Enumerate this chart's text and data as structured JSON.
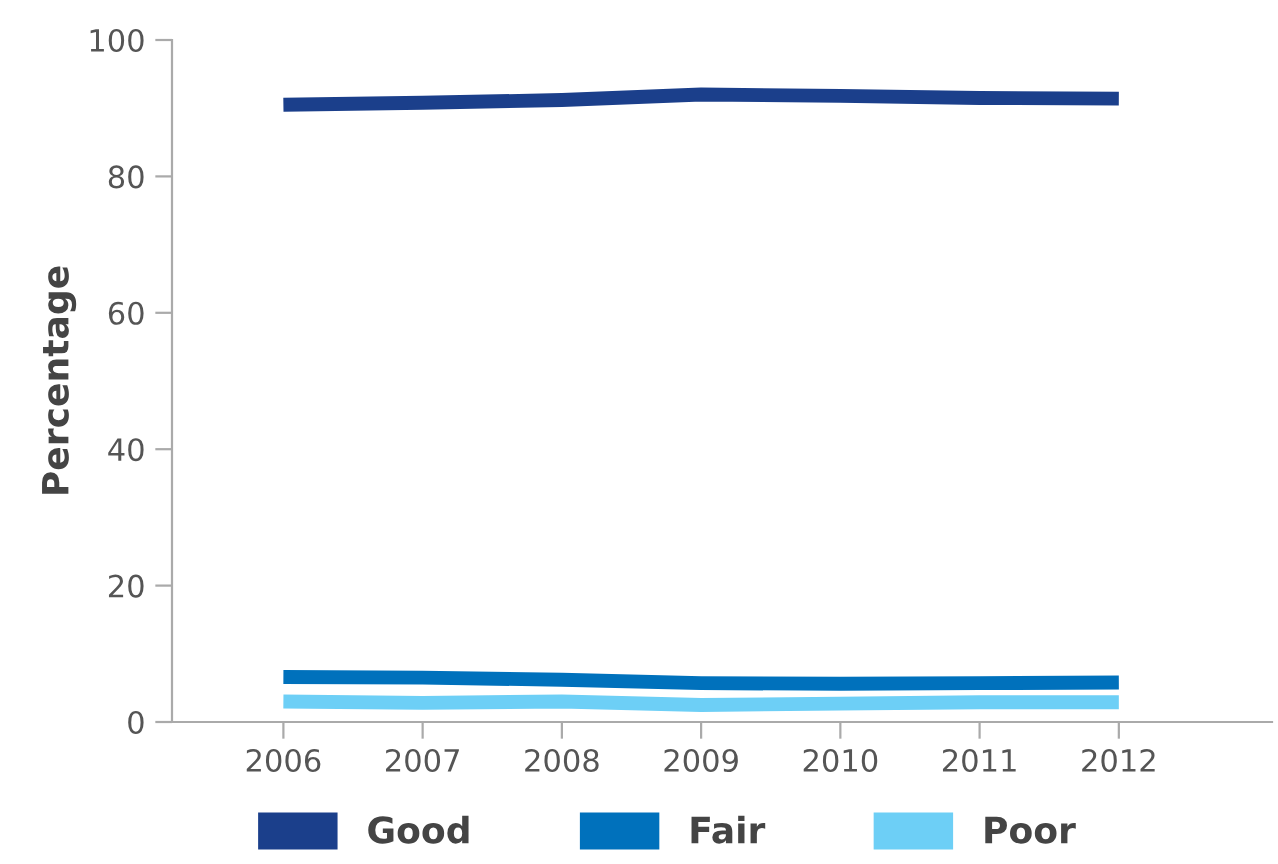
{
  "chart_data": {
    "type": "line",
    "ylabel": "Percentage",
    "categories": [
      "2006",
      "2007",
      "2008",
      "2009",
      "2010",
      "2011",
      "2012"
    ],
    "series": [
      {
        "name": "Good",
        "color": "#1b3f8b",
        "values": [
          90.5,
          90.8,
          91.2,
          92.0,
          91.8,
          91.5,
          91.4
        ]
      },
      {
        "name": "Fair",
        "color": "#0071bc",
        "values": [
          6.6,
          6.5,
          6.2,
          5.7,
          5.6,
          5.7,
          5.8
        ]
      },
      {
        "name": "Poor",
        "color": "#6dcff6",
        "values": [
          3.0,
          2.8,
          3.0,
          2.5,
          2.7,
          2.9,
          2.9
        ]
      }
    ],
    "ylim": [
      0,
      100
    ],
    "yticks": [
      0,
      20,
      40,
      60,
      80,
      100
    ],
    "grid": false,
    "legend": "bottom",
    "marker": "none",
    "line_style": "solid"
  }
}
